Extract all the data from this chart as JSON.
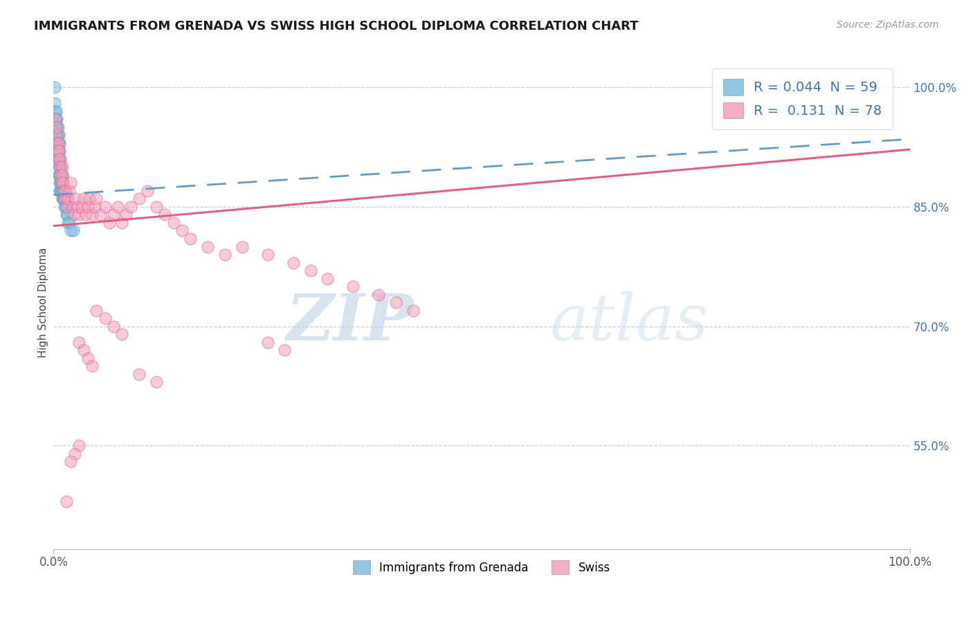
{
  "title": "IMMIGRANTS FROM GRENADA VS SWISS HIGH SCHOOL DIPLOMA CORRELATION CHART",
  "source": "Source: ZipAtlas.com",
  "ylabel": "High School Diploma",
  "xlim": [
    0.0,
    1.0
  ],
  "ylim": [
    0.42,
    1.04
  ],
  "right_ytick_labels": [
    "55.0%",
    "70.0%",
    "85.0%",
    "100.0%"
  ],
  "right_ytick_values": [
    0.55,
    0.7,
    0.85,
    1.0
  ],
  "bottom_xtick_labels": [
    "0.0%",
    "100.0%"
  ],
  "legend_R1": "R = 0.044",
  "legend_N1": "N = 59",
  "legend_R2": "R =  0.131",
  "legend_N2": "N = 78",
  "blue_color": "#7bbde0",
  "blue_edge": "#5aa0cc",
  "pink_color": "#f5a0bb",
  "pink_edge": "#e07090",
  "blue_line_color": "#6699cc",
  "pink_line_color": "#e06080",
  "watermark_text": "ZIPatlas",
  "series1_label": "Immigrants from Grenada",
  "series2_label": "Swiss",
  "blue_N": 59,
  "pink_N": 78,
  "blue_scatter_x": [
    0.001,
    0.001,
    0.002,
    0.002,
    0.002,
    0.003,
    0.003,
    0.003,
    0.003,
    0.003,
    0.004,
    0.004,
    0.004,
    0.004,
    0.005,
    0.005,
    0.005,
    0.005,
    0.005,
    0.006,
    0.006,
    0.006,
    0.006,
    0.006,
    0.006,
    0.007,
    0.007,
    0.007,
    0.007,
    0.007,
    0.007,
    0.007,
    0.008,
    0.008,
    0.008,
    0.008,
    0.008,
    0.009,
    0.009,
    0.009,
    0.009,
    0.01,
    0.01,
    0.01,
    0.01,
    0.011,
    0.011,
    0.011,
    0.012,
    0.012,
    0.013,
    0.013,
    0.014,
    0.015,
    0.016,
    0.017,
    0.018,
    0.02,
    0.023
  ],
  "blue_scatter_y": [
    1.0,
    0.98,
    0.97,
    0.96,
    0.95,
    0.97,
    0.96,
    0.95,
    0.94,
    0.93,
    0.96,
    0.95,
    0.94,
    0.93,
    0.95,
    0.94,
    0.93,
    0.92,
    0.91,
    0.94,
    0.93,
    0.92,
    0.91,
    0.9,
    0.89,
    0.93,
    0.92,
    0.91,
    0.9,
    0.89,
    0.88,
    0.87,
    0.91,
    0.9,
    0.89,
    0.88,
    0.87,
    0.9,
    0.89,
    0.88,
    0.87,
    0.89,
    0.88,
    0.87,
    0.86,
    0.88,
    0.87,
    0.86,
    0.87,
    0.86,
    0.86,
    0.85,
    0.85,
    0.84,
    0.84,
    0.83,
    0.83,
    0.82,
    0.82
  ],
  "pink_scatter_x": [
    0.002,
    0.003,
    0.004,
    0.004,
    0.005,
    0.005,
    0.006,
    0.006,
    0.007,
    0.007,
    0.008,
    0.009,
    0.01,
    0.01,
    0.011,
    0.012,
    0.013,
    0.014,
    0.015,
    0.016,
    0.017,
    0.018,
    0.02,
    0.022,
    0.024,
    0.026,
    0.028,
    0.03,
    0.033,
    0.035,
    0.038,
    0.04,
    0.042,
    0.045,
    0.048,
    0.05,
    0.055,
    0.06,
    0.065,
    0.07,
    0.075,
    0.08,
    0.085,
    0.09,
    0.1,
    0.11,
    0.12,
    0.13,
    0.14,
    0.15,
    0.16,
    0.18,
    0.2,
    0.22,
    0.25,
    0.28,
    0.3,
    0.32,
    0.35,
    0.38,
    0.4,
    0.42,
    0.25,
    0.27,
    0.05,
    0.06,
    0.07,
    0.08,
    0.03,
    0.035,
    0.04,
    0.045,
    0.1,
    0.12,
    0.03,
    0.025,
    0.02,
    0.015
  ],
  "pink_scatter_y": [
    0.96,
    0.94,
    0.95,
    0.93,
    0.92,
    0.91,
    0.93,
    0.92,
    0.91,
    0.9,
    0.89,
    0.88,
    0.9,
    0.89,
    0.88,
    0.87,
    0.86,
    0.87,
    0.86,
    0.85,
    0.86,
    0.87,
    0.88,
    0.85,
    0.84,
    0.86,
    0.85,
    0.84,
    0.85,
    0.86,
    0.84,
    0.85,
    0.86,
    0.84,
    0.85,
    0.86,
    0.84,
    0.85,
    0.83,
    0.84,
    0.85,
    0.83,
    0.84,
    0.85,
    0.86,
    0.87,
    0.85,
    0.84,
    0.83,
    0.82,
    0.81,
    0.8,
    0.79,
    0.8,
    0.79,
    0.78,
    0.77,
    0.76,
    0.75,
    0.74,
    0.73,
    0.72,
    0.68,
    0.67,
    0.72,
    0.71,
    0.7,
    0.69,
    0.68,
    0.67,
    0.66,
    0.65,
    0.64,
    0.63,
    0.55,
    0.54,
    0.53,
    0.48
  ],
  "blue_line_x": [
    0.0,
    1.0
  ],
  "blue_line_y": [
    0.865,
    0.935
  ],
  "pink_line_x": [
    0.0,
    1.0
  ],
  "pink_line_y": [
    0.826,
    0.922
  ]
}
